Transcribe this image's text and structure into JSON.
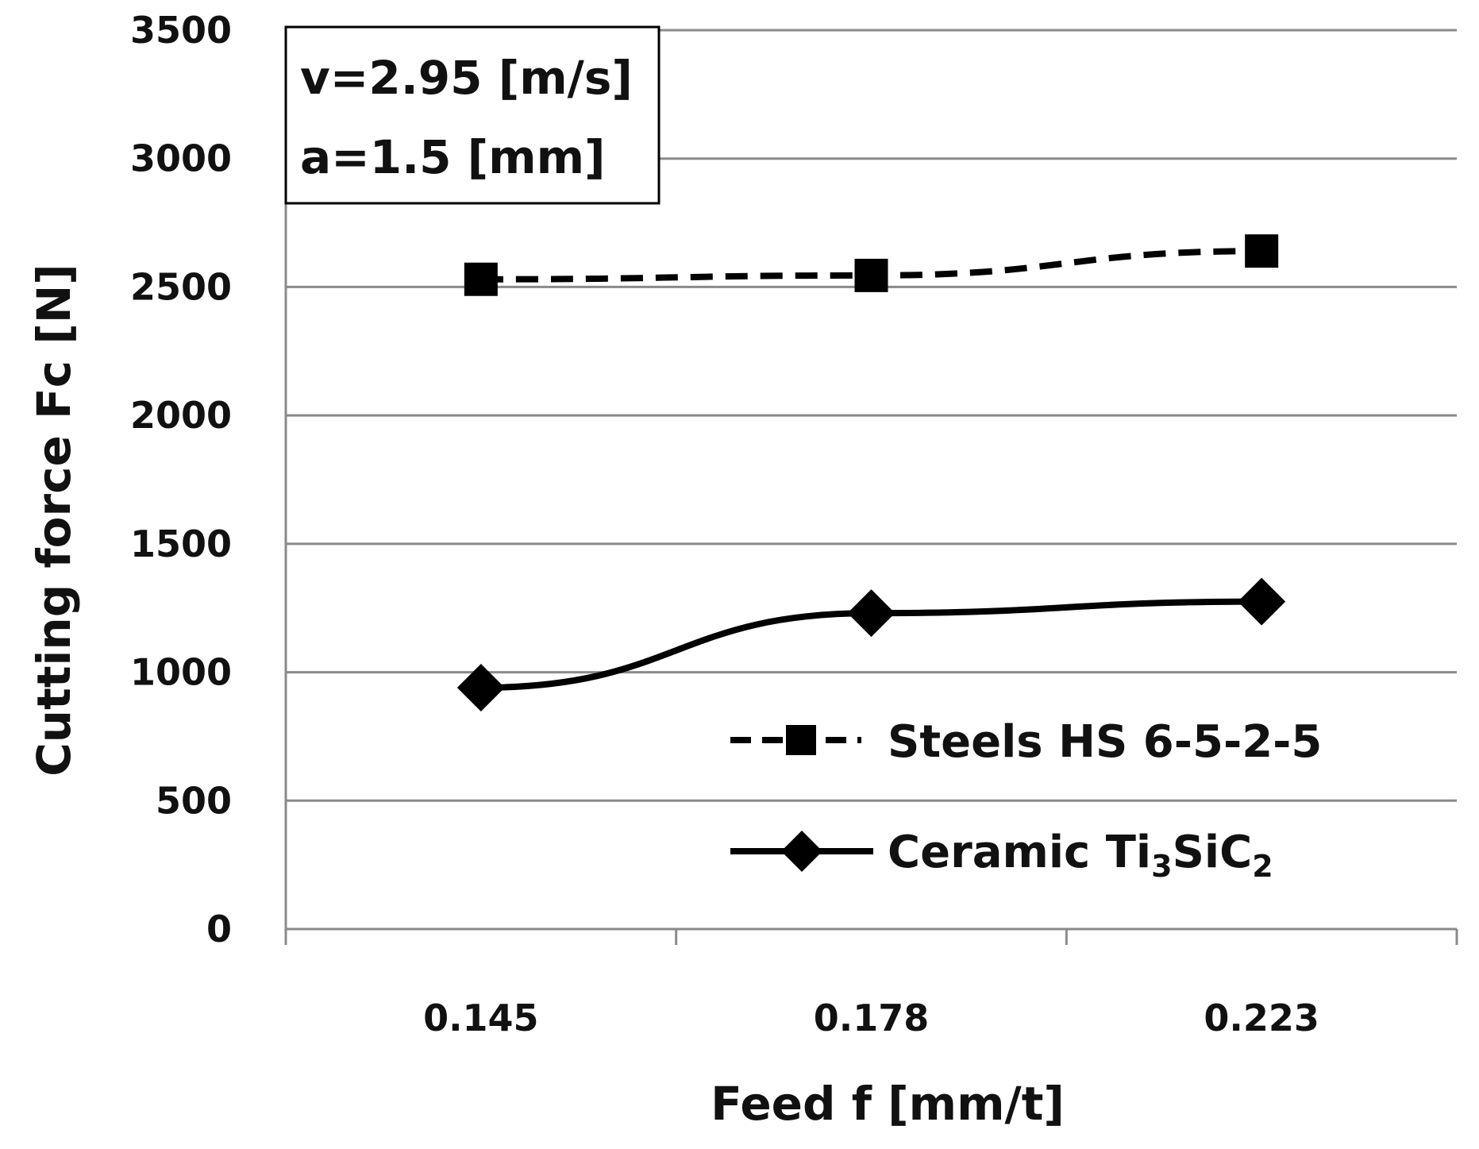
{
  "chart_data": {
    "type": "line",
    "title": "",
    "xlabel": "Feed f [mm/t]",
    "ylabel": "Cutting force Fc [N]",
    "categories": [
      "0.145",
      "0.178",
      "0.223"
    ],
    "ylim": [
      0,
      3500
    ],
    "yticks": [
      0,
      500,
      1000,
      1500,
      2000,
      2500,
      3000,
      3500
    ],
    "ytick_labels": [
      "0",
      "500",
      "1000",
      "1500",
      "2000",
      "2500",
      "3000",
      "3500"
    ],
    "grid": true,
    "legend_position": "bottom-right",
    "series": [
      {
        "name": "Steels HS 6-5-2-5",
        "values": [
          2530,
          2545,
          2640
        ],
        "line_style": "dashed",
        "marker": "square",
        "color": "#000000"
      },
      {
        "name": "Ceramic Ti3SiC2",
        "name_parts": {
          "prefix": "Ceramic Ti",
          "sub1": "3",
          "mid": "SiC",
          "sub2": "2"
        },
        "values": [
          940,
          1230,
          1275
        ],
        "line_style": "solid",
        "marker": "diamond",
        "color": "#000000"
      }
    ],
    "annotation": {
      "lines": [
        "v=2.95 [m/s]",
        "a=1.5 [mm]"
      ]
    }
  }
}
